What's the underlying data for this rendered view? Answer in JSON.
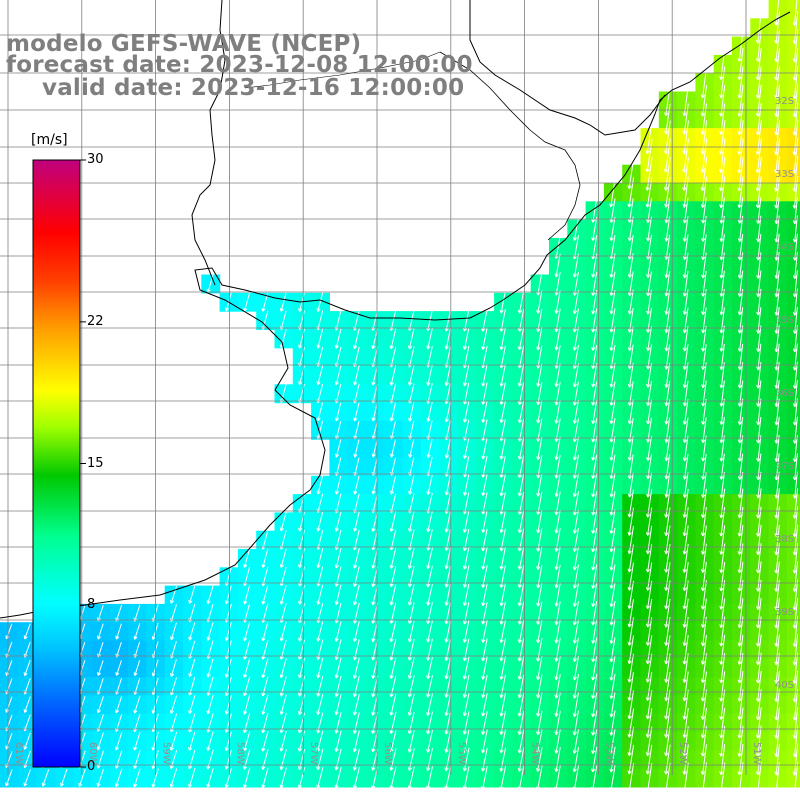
{
  "header": {
    "title": "modelo GEFS-WAVE (NCEP)",
    "forecast": "forecast date: 2023-12-08 12:00:00",
    "valid": "valid date: 2023-12-16 12:00:00"
  },
  "legend": {
    "unit": "[m/s]",
    "ticks": [
      "30",
      "22",
      "15",
      "8",
      "0"
    ],
    "tick_values": [
      30,
      22,
      15,
      8,
      0
    ],
    "range": [
      0,
      30
    ],
    "colormap": [
      "#0000ff",
      "#0080ff",
      "#00ffff",
      "#00ff80",
      "#00c000",
      "#80ff00",
      "#ffff00",
      "#ffa000",
      "#ff4000",
      "#ff0000",
      "#d00080",
      "#c0006f"
    ]
  },
  "graticule": {
    "lat_labels": [
      "32S",
      "33S",
      "34S",
      "35S",
      "36S",
      "37S",
      "38S",
      "39S",
      "40S"
    ],
    "lon_labels": [
      "61W",
      "60W",
      "59W",
      "58W",
      "57W",
      "56W",
      "55W",
      "54W",
      "53W",
      "52W",
      "51W"
    ]
  },
  "map_data": {
    "variable": "wind speed",
    "units": "m/s",
    "land_color": "#ffffff",
    "coast_color": "#000000",
    "grid_color": "#808080"
  }
}
